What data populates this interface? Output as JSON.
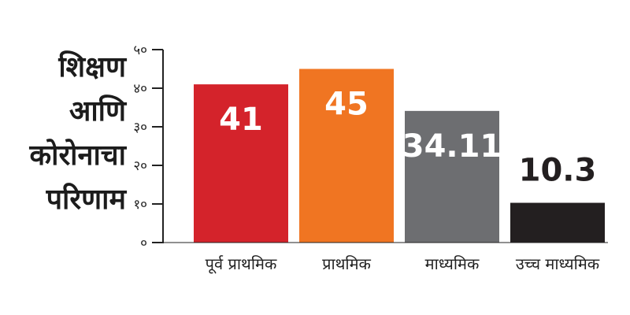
{
  "chart_data": {
    "type": "bar",
    "title_lines": [
      "शिक्षण",
      "आणि",
      "कोरोनाचा",
      "परिणाम"
    ],
    "categories": [
      "पूर्व प्राथमिक",
      "प्राथमिक",
      "माध्यमिक",
      "उच्च माध्यमिक"
    ],
    "values": [
      41,
      45,
      34.11,
      10.3
    ],
    "value_labels": [
      "41",
      "45",
      "34.11",
      "10.3"
    ],
    "colors": [
      "#d4232b",
      "#f07522",
      "#6d6e71",
      "#231f20"
    ],
    "label_colors": [
      "#ffffff",
      "#ffffff",
      "#ffffff",
      "#231f20"
    ],
    "label_inside": [
      true,
      true,
      true,
      false
    ],
    "yticks": [
      0,
      10,
      20,
      30,
      40,
      50
    ],
    "ytick_labels": [
      "०",
      "१०",
      "२०",
      "३०",
      "४०",
      "५०"
    ],
    "ylim": [
      0,
      50
    ],
    "grid": false
  }
}
